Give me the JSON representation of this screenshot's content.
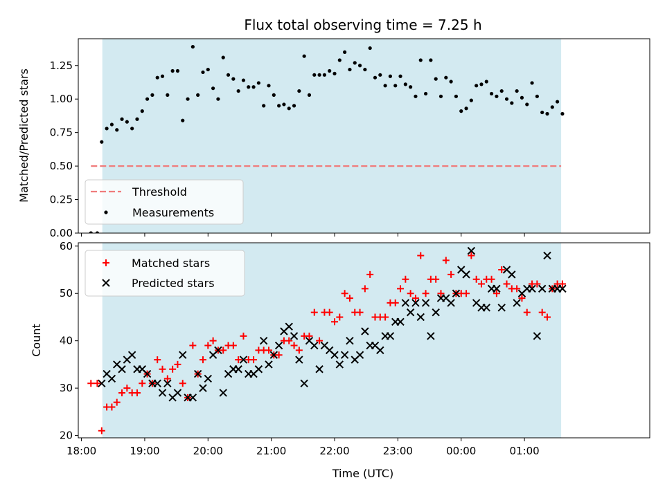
{
  "chart_data": [
    {
      "type": "scatter",
      "title": "Flux total observing time = 7.25 h",
      "xlabel": "",
      "ylabel": "Matched/Predicted stars",
      "xlim": [
        17.95,
        26.98
      ],
      "ylim": [
        0.0,
        1.45
      ],
      "grid": false,
      "shaded_span": {
        "x_start": 18.33,
        "x_end": 25.58,
        "color": "#d3eaf1"
      },
      "y_ticks": [
        0.0,
        0.25,
        0.5,
        0.75,
        1.0,
        1.25
      ],
      "y_tick_labels": [
        "0.00",
        "0.25",
        "0.50",
        "0.75",
        "1.00",
        "1.25"
      ],
      "legend_position": "lower-left",
      "threshold": {
        "name": "Threshold",
        "value": 0.5,
        "x_start": 18.15,
        "x_end": 25.58,
        "color": "#f07c7c",
        "style": "dashed"
      },
      "series": [
        {
          "name": "Measurements",
          "marker": "dot",
          "color": "#000000",
          "x": [
            18.15,
            18.25,
            18.32,
            18.4,
            18.48,
            18.56,
            18.64,
            18.72,
            18.8,
            18.88,
            18.96,
            19.04,
            19.12,
            19.2,
            19.28,
            19.36,
            19.44,
            19.52,
            19.6,
            19.68,
            19.76,
            19.84,
            19.92,
            20.0,
            20.08,
            20.16,
            20.24,
            20.32,
            20.4,
            20.48,
            20.56,
            20.64,
            20.72,
            20.8,
            20.88,
            20.96,
            21.04,
            21.12,
            21.2,
            21.28,
            21.36,
            21.44,
            21.52,
            21.6,
            21.68,
            21.76,
            21.84,
            21.92,
            22.0,
            22.08,
            22.16,
            22.24,
            22.32,
            22.4,
            22.48,
            22.56,
            22.64,
            22.72,
            22.8,
            22.88,
            22.96,
            23.04,
            23.12,
            23.2,
            23.28,
            23.36,
            23.44,
            23.52,
            23.6,
            23.68,
            23.76,
            23.84,
            23.92,
            24.0,
            24.08,
            24.16,
            24.24,
            24.32,
            24.4,
            24.48,
            24.56,
            24.64,
            24.72,
            24.8,
            24.88,
            24.96,
            25.04,
            25.12,
            25.2,
            25.28,
            25.36,
            25.44,
            25.52,
            25.6
          ],
          "y": [
            0.0,
            0.0,
            0.68,
            0.78,
            0.81,
            0.77,
            0.85,
            0.83,
            0.78,
            0.85,
            0.91,
            1.0,
            1.03,
            1.16,
            1.17,
            1.03,
            1.21,
            1.21,
            0.84,
            1.0,
            1.39,
            1.03,
            1.2,
            1.22,
            1.08,
            1.0,
            1.31,
            1.18,
            1.15,
            1.06,
            1.14,
            1.09,
            1.09,
            1.12,
            0.95,
            1.1,
            1.03,
            0.95,
            0.96,
            0.93,
            0.95,
            1.06,
            1.32,
            1.03,
            1.18,
            1.18,
            1.18,
            1.21,
            1.19,
            1.29,
            1.35,
            1.22,
            1.27,
            1.25,
            1.22,
            1.38,
            1.16,
            1.18,
            1.1,
            1.17,
            1.1,
            1.17,
            1.11,
            1.09,
            1.02,
            1.29,
            1.04,
            1.29,
            1.15,
            1.02,
            1.16,
            1.13,
            1.02,
            0.91,
            0.93,
            0.99,
            1.1,
            1.11,
            1.13,
            1.04,
            1.02,
            1.06,
            1.0,
            0.97,
            1.06,
            1.01,
            0.96,
            1.12,
            1.02,
            0.9,
            0.89,
            0.94,
            0.98,
            0.89
          ]
        }
      ]
    },
    {
      "type": "scatter",
      "title": "",
      "xlabel": "Time (UTC)",
      "ylabel": "Count",
      "xlim": [
        17.95,
        26.98
      ],
      "ylim": [
        19.5,
        60.7
      ],
      "grid": false,
      "shaded_span": {
        "x_start": 18.33,
        "x_end": 25.58,
        "color": "#d3eaf1"
      },
      "x_ticks": [
        18,
        19,
        20,
        21,
        22,
        23,
        24,
        25
      ],
      "x_tick_labels": [
        "18:00",
        "19:00",
        "20:00",
        "21:00",
        "22:00",
        "23:00",
        "00:00",
        "01:00"
      ],
      "y_ticks": [
        20,
        30,
        40,
        50,
        60
      ],
      "y_tick_labels": [
        "20",
        "30",
        "40",
        "50",
        "60"
      ],
      "legend_position": "upper-left",
      "series": [
        {
          "name": "Matched stars",
          "marker": "plus",
          "color": "#ff0000",
          "x": [
            18.15,
            18.25,
            18.32,
            18.4,
            18.48,
            18.56,
            18.64,
            18.72,
            18.8,
            18.88,
            18.96,
            19.04,
            19.12,
            19.2,
            19.28,
            19.36,
            19.44,
            19.52,
            19.6,
            19.68,
            19.76,
            19.84,
            19.92,
            20.0,
            20.08,
            20.16,
            20.24,
            20.32,
            20.4,
            20.48,
            20.56,
            20.64,
            20.72,
            20.8,
            20.88,
            20.96,
            21.04,
            21.12,
            21.2,
            21.28,
            21.36,
            21.44,
            21.52,
            21.6,
            21.68,
            21.76,
            21.84,
            21.92,
            22.0,
            22.08,
            22.16,
            22.24,
            22.32,
            22.4,
            22.48,
            22.56,
            22.64,
            22.72,
            22.8,
            22.88,
            22.96,
            23.04,
            23.12,
            23.2,
            23.28,
            23.36,
            23.44,
            23.52,
            23.6,
            23.68,
            23.76,
            23.84,
            23.92,
            24.0,
            24.08,
            24.16,
            24.24,
            24.32,
            24.4,
            24.48,
            24.56,
            24.64,
            24.72,
            24.8,
            24.88,
            24.96,
            25.04,
            25.12,
            25.2,
            25.28,
            25.36,
            25.44,
            25.52,
            25.6
          ],
          "y": [
            31,
            31,
            21,
            26,
            26,
            27,
            29,
            30,
            29,
            29,
            31,
            33,
            31,
            36,
            34,
            32,
            34,
            35,
            31,
            28,
            39,
            33,
            36,
            39,
            40,
            38,
            38,
            39,
            39,
            36,
            41,
            36,
            36,
            38,
            38,
            38,
            37,
            37,
            40,
            40,
            39,
            38,
            41,
            41,
            46,
            40,
            46,
            46,
            44,
            45,
            50,
            49,
            46,
            46,
            51,
            54,
            45,
            45,
            45,
            48,
            48,
            51,
            53,
            50,
            49,
            58,
            50,
            53,
            53,
            50,
            57,
            54,
            50,
            50,
            50,
            58,
            53,
            52,
            53,
            53,
            50,
            55,
            52,
            51,
            51,
            49,
            46,
            52,
            52,
            46,
            45,
            51,
            52,
            52
          ]
        },
        {
          "name": "Predicted stars",
          "marker": "x",
          "color": "#000000",
          "x": [
            18.32,
            18.4,
            18.48,
            18.56,
            18.64,
            18.72,
            18.8,
            18.88,
            18.96,
            19.04,
            19.12,
            19.2,
            19.28,
            19.36,
            19.44,
            19.52,
            19.6,
            19.68,
            19.76,
            19.84,
            19.92,
            20.0,
            20.08,
            20.16,
            20.24,
            20.32,
            20.4,
            20.48,
            20.56,
            20.64,
            20.72,
            20.8,
            20.88,
            20.96,
            21.04,
            21.12,
            21.2,
            21.28,
            21.36,
            21.44,
            21.52,
            21.6,
            21.68,
            21.76,
            21.84,
            21.92,
            22.0,
            22.08,
            22.16,
            22.24,
            22.32,
            22.4,
            22.48,
            22.56,
            22.64,
            22.72,
            22.8,
            22.88,
            22.96,
            23.04,
            23.12,
            23.2,
            23.28,
            23.36,
            23.44,
            23.52,
            23.6,
            23.68,
            23.76,
            23.84,
            23.92,
            24.0,
            24.08,
            24.16,
            24.24,
            24.32,
            24.4,
            24.48,
            24.56,
            24.64,
            24.72,
            24.8,
            24.88,
            24.96,
            25.04,
            25.12,
            25.2,
            25.28,
            25.36,
            25.44,
            25.52,
            25.6
          ],
          "y": [
            31,
            33,
            32,
            35,
            34,
            36,
            37,
            34,
            34,
            33,
            31,
            31,
            29,
            31,
            28,
            29,
            37,
            28,
            28,
            33,
            30,
            32,
            37,
            38,
            29,
            33,
            34,
            34,
            36,
            33,
            33,
            34,
            40,
            35,
            37,
            39,
            42,
            43,
            41,
            36,
            31,
            40,
            39,
            34,
            39,
            38,
            37,
            35,
            37,
            40,
            36,
            37,
            42,
            39,
            39,
            38,
            41,
            41,
            44,
            44,
            48,
            46,
            48,
            45,
            48,
            41,
            46,
            49,
            49,
            48,
            50,
            55,
            54,
            59,
            48,
            47,
            47,
            51,
            51,
            47,
            55,
            54,
            48,
            50,
            51,
            51,
            41,
            51,
            58,
            51,
            51,
            51
          ]
        }
      ]
    }
  ]
}
